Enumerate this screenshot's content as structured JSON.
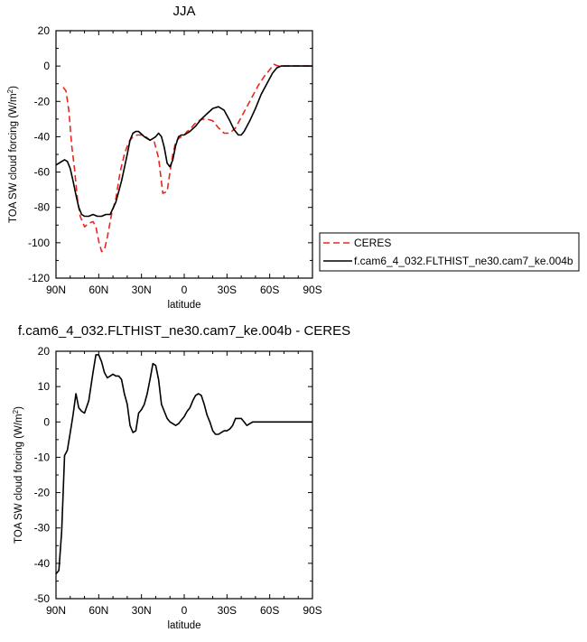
{
  "chart_data": [
    {
      "type": "line",
      "title": "JJA",
      "xlabel": "latitude",
      "ylabel": "TOA SW cloud forcing (W/m",
      "ylabel_sup": "2",
      "ylabel_end": ")",
      "xlim": [
        90,
        -90
      ],
      "ylim": [
        -120,
        20
      ],
      "xticks": [
        90,
        60,
        30,
        0,
        -30,
        -60,
        -90
      ],
      "xtick_labels": [
        "90N",
        "60N",
        "30N",
        "0",
        "30S",
        "60S",
        "90S"
      ],
      "yticks": [
        -120,
        -100,
        -80,
        -60,
        -40,
        -20,
        0,
        20
      ],
      "ytick_labels": [
        "-120",
        "-100",
        "-80",
        "-60",
        "-40",
        "-20",
        "0",
        "20"
      ],
      "legend_position": "right",
      "series": [
        {
          "name": "CERES",
          "color": "#e8281e",
          "dash": "dashed",
          "x": [
            85,
            83,
            81,
            79,
            77,
            75,
            73,
            70,
            67,
            64,
            62,
            60,
            58,
            56,
            54,
            51,
            48,
            45,
            42,
            39,
            36,
            33,
            30,
            27,
            24,
            21,
            18,
            15,
            12,
            10,
            8,
            6,
            4,
            2,
            0,
            -2,
            -4,
            -7,
            -10,
            -13,
            -16,
            -20,
            -24,
            -28,
            -32,
            -36,
            -40,
            -44,
            -48,
            -52,
            -56,
            -60,
            -63,
            -66,
            -70,
            -75,
            -80,
            -85,
            -90
          ],
          "y": [
            -12,
            -14,
            -25,
            -45,
            -58,
            -75,
            -85,
            -91,
            -89,
            -88,
            -91,
            -99,
            -105,
            -104,
            -97,
            -84,
            -75,
            -60,
            -50,
            -43,
            -40,
            -39,
            -39,
            -40,
            -42,
            -43,
            -52,
            -72,
            -71,
            -60,
            -50,
            -43,
            -41,
            -40,
            -39,
            -37,
            -36,
            -33,
            -31,
            -30,
            -30,
            -31,
            -35,
            -38,
            -38,
            -35,
            -29,
            -23,
            -17,
            -11,
            -6,
            -2,
            1,
            0,
            0,
            0,
            0,
            0,
            0
          ]
        },
        {
          "name": "f.cam6_4_032.FLTHIST_ne30.cam7_ke.004b",
          "color": "#000000",
          "dash": "solid",
          "x": [
            90,
            88,
            86,
            84,
            82,
            80,
            78,
            76,
            74,
            72,
            70,
            67,
            64,
            61,
            58,
            55,
            52,
            48,
            44,
            40,
            38,
            36,
            34,
            32,
            28,
            24,
            22,
            20,
            18,
            16,
            14,
            12,
            10,
            8,
            6,
            4,
            2,
            0,
            -4,
            -8,
            -12,
            -16,
            -20,
            -24,
            -28,
            -32,
            -35,
            -38,
            -40,
            -42,
            -46,
            -50,
            -54,
            -58,
            -62,
            -65,
            -68,
            -70,
            -75,
            -80,
            -85,
            -90
          ],
          "y": [
            -56,
            -55,
            -54,
            -53,
            -54,
            -58,
            -65,
            -73,
            -80,
            -84,
            -85,
            -85,
            -84,
            -85,
            -85,
            -84,
            -84,
            -77,
            -65,
            -50,
            -42,
            -38,
            -37,
            -37,
            -40,
            -42,
            -41,
            -40,
            -38,
            -40,
            -46,
            -55,
            -57,
            -53,
            -45,
            -40,
            -39,
            -39,
            -37,
            -34,
            -30,
            -27,
            -24,
            -23,
            -25,
            -31,
            -36,
            -39,
            -39,
            -37,
            -31,
            -24,
            -16,
            -10,
            -4,
            -1,
            0,
            0,
            0,
            0,
            0,
            0
          ]
        }
      ]
    },
    {
      "type": "line",
      "title": "f.cam6_4_032.FLTHIST_ne30.cam7_ke.004b - CERES",
      "xlabel": "latitude",
      "ylabel": "TOA SW cloud forcing (W/m",
      "ylabel_sup": "2",
      "ylabel_end": ")",
      "xlim": [
        90,
        -90
      ],
      "ylim": [
        -50,
        20
      ],
      "xticks": [
        90,
        60,
        30,
        0,
        -30,
        -60,
        -90
      ],
      "xtick_labels": [
        "90N",
        "60N",
        "30N",
        "0",
        "30S",
        "60S",
        "90S"
      ],
      "yticks": [
        -50,
        -40,
        -30,
        -20,
        -10,
        0,
        10,
        20
      ],
      "ytick_labels": [
        "-50",
        "-40",
        "-30",
        "-20",
        "-10",
        "0",
        "10",
        "20"
      ],
      "series": [
        {
          "name": "",
          "color": "#000000",
          "dash": "solid",
          "x": [
            90,
            88,
            86,
            84,
            82,
            80,
            78,
            76,
            74,
            72,
            70,
            67,
            64,
            62,
            60,
            58,
            56,
            54,
            52,
            50,
            48,
            46,
            44,
            42,
            40,
            38,
            36,
            34,
            32,
            30,
            28,
            26,
            24,
            22,
            20,
            18,
            16,
            14,
            12,
            10,
            8,
            6,
            4,
            2,
            0,
            -2,
            -4,
            -6,
            -8,
            -10,
            -12,
            -14,
            -16,
            -18,
            -20,
            -22,
            -24,
            -26,
            -28,
            -30,
            -32,
            -34,
            -36,
            -38,
            -40,
            -42,
            -44,
            -46,
            -48,
            -50,
            -52,
            -54,
            -56,
            -58,
            -60,
            -62,
            -64,
            -66,
            -68,
            -70,
            -72,
            -75,
            -80,
            -85,
            -90
          ],
          "y": [
            -43,
            -42,
            -31,
            -9.5,
            -8,
            -3,
            2,
            8,
            4,
            3,
            2.5,
            6,
            14,
            19,
            19,
            17,
            14,
            12.5,
            13,
            13.5,
            13,
            13,
            12,
            8,
            5,
            -1,
            -3,
            -2.5,
            2.5,
            3.5,
            5,
            8,
            12,
            16.5,
            16,
            12,
            5,
            3,
            1,
            0,
            -0.5,
            -1,
            -0.5,
            0.5,
            1.5,
            3,
            4,
            6,
            7.5,
            8,
            7.5,
            5,
            2,
            0,
            -2.5,
            -3.5,
            -3.5,
            -3,
            -2.5,
            -2.5,
            -2,
            -1,
            1,
            1,
            1,
            0,
            -1,
            -0.5,
            0,
            0,
            0,
            0,
            0,
            0,
            0,
            0,
            0,
            0,
            0,
            0,
            0,
            0,
            0,
            0,
            0
          ]
        }
      ]
    }
  ]
}
